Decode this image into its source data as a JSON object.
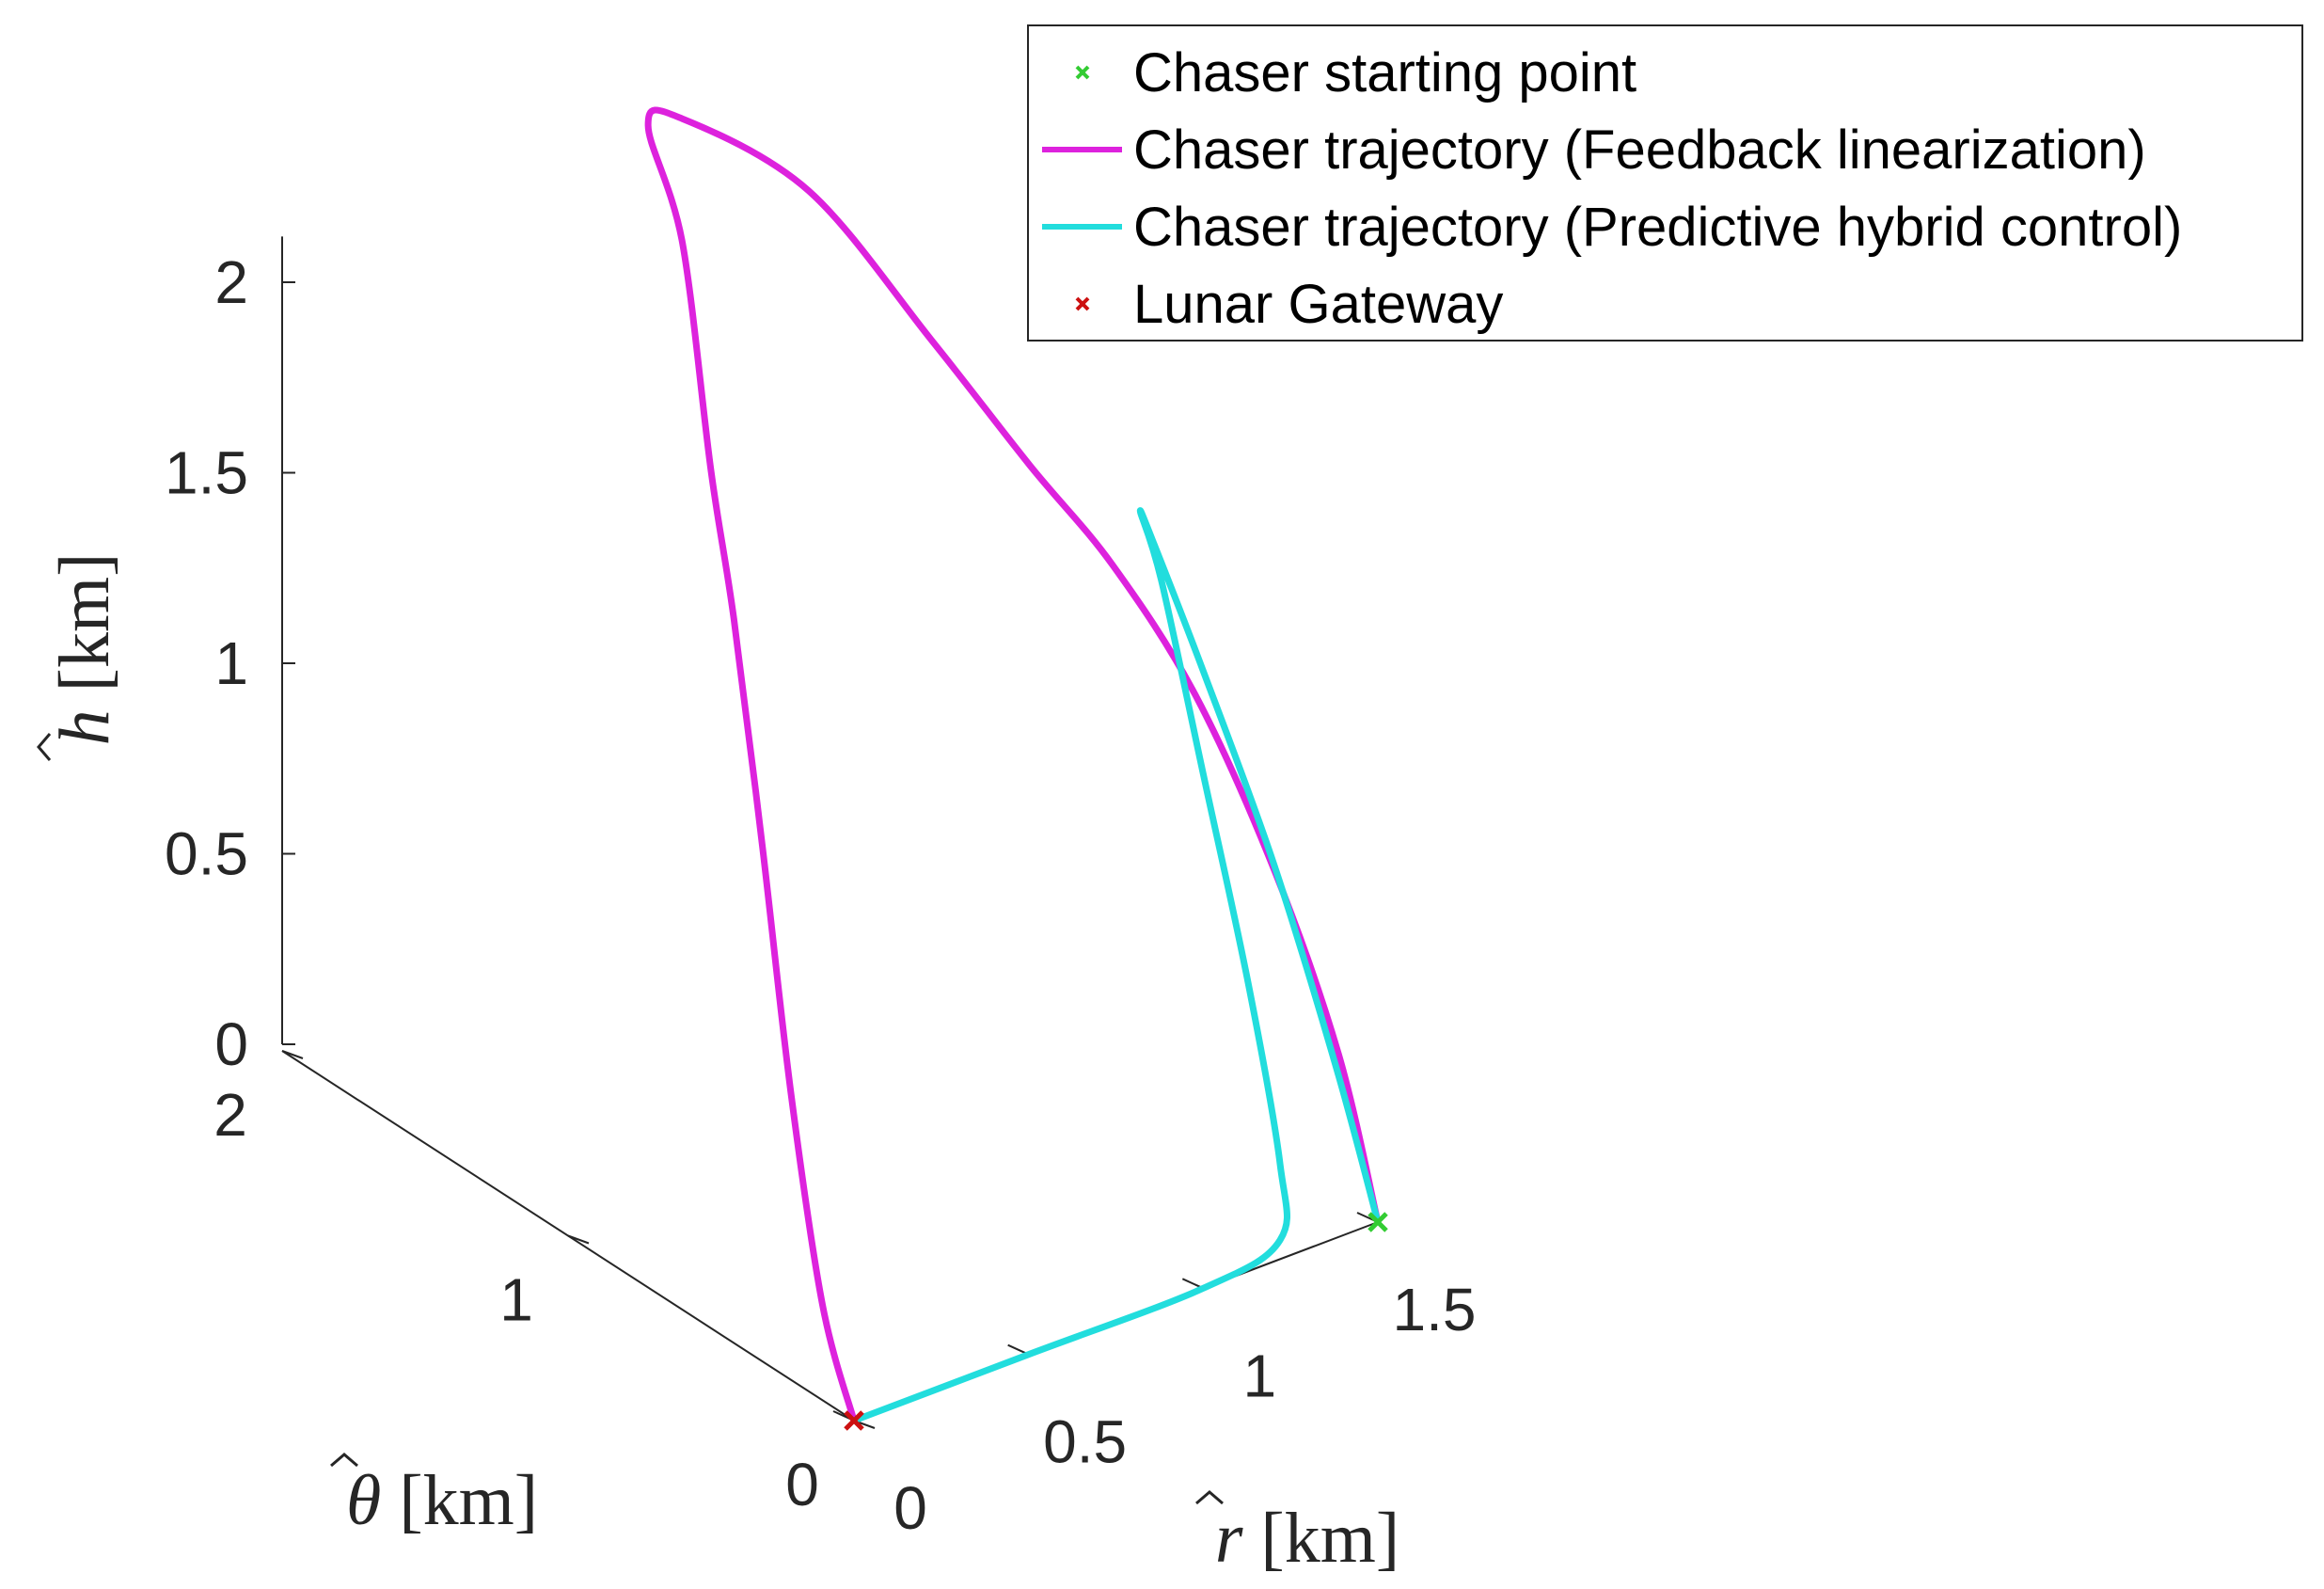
{
  "chart_data": {
    "type": "line",
    "projection": "3d",
    "title": "",
    "axes": {
      "r": {
        "symbol": "r",
        "label_rest": " [km]",
        "ticks": [
          "0",
          "0.5",
          "1",
          "1.5"
        ],
        "range": [
          0,
          1.5
        ]
      },
      "theta": {
        "symbol": "θ",
        "label_rest": " [km]",
        "ticks": [
          "0",
          "1",
          "2"
        ],
        "range": [
          0,
          2
        ]
      },
      "h": {
        "symbol": "h",
        "label_rest": " [km]",
        "ticks": [
          "0",
          "0.5",
          "1",
          "1.5",
          "2"
        ],
        "range": [
          0,
          2
        ]
      }
    },
    "grid": false,
    "legend_position": "top-right",
    "series": [
      {
        "name": "Chaser starting point",
        "kind": "marker",
        "marker": "x",
        "color": "#33cc33",
        "points": [
          {
            "r": 1.5,
            "theta": 0,
            "h": 0
          }
        ]
      },
      {
        "name": "Chaser trajectory (Feedback linearization)",
        "kind": "line",
        "color": "#dd22dd",
        "points": [
          {
            "r": 0.0,
            "theta": 0.0,
            "h": 0.0
          },
          {
            "r": 0.0,
            "theta": 0.11,
            "h": 0.25
          },
          {
            "r": 0.0,
            "theta": 0.22,
            "h": 0.75
          },
          {
            "r": 0.0,
            "theta": 0.32,
            "h": 1.35
          },
          {
            "r": 0.0,
            "theta": 0.42,
            "h": 1.9
          },
          {
            "r": 0.0,
            "theta": 0.5,
            "h": 2.25
          },
          {
            "r": 0.0,
            "theta": 0.6,
            "h": 2.8
          },
          {
            "r": 0.0,
            "theta": 0.72,
            "h": 3.05
          },
          {
            "r": 0.08,
            "theta": 0.7,
            "h": 3.05
          },
          {
            "r": 0.32,
            "theta": 0.55,
            "h": 2.85
          },
          {
            "r": 0.55,
            "theta": 0.4,
            "h": 2.45
          },
          {
            "r": 0.75,
            "theta": 0.3,
            "h": 2.1
          },
          {
            "r": 0.92,
            "theta": 0.22,
            "h": 1.82
          },
          {
            "r": 1.1,
            "theta": 0.15,
            "h": 1.45
          },
          {
            "r": 1.28,
            "theta": 0.09,
            "h": 0.95
          },
          {
            "r": 1.42,
            "theta": 0.04,
            "h": 0.45
          },
          {
            "r": 1.5,
            "theta": 0.0,
            "h": 0.0
          }
        ]
      },
      {
        "name": "Chaser trajectory (Predictive hybrid control)",
        "kind": "line",
        "color": "#22dddd",
        "points": [
          {
            "r": 0.0,
            "theta": 0.0,
            "h": 0.0
          },
          {
            "r": 0.5,
            "theta": 0.0,
            "h": 0.0
          },
          {
            "r": 1.0,
            "theta": 0.0,
            "h": 0.0
          },
          {
            "r": 1.22,
            "theta": 0.0,
            "h": 0.05
          },
          {
            "r": 1.22,
            "theta": 0.0,
            "h": 0.25
          },
          {
            "r": 1.13,
            "theta": 0.0,
            "h": 0.75
          },
          {
            "r": 1.0,
            "theta": 0.0,
            "h": 1.35
          },
          {
            "r": 0.88,
            "theta": 0.0,
            "h": 1.9
          },
          {
            "r": 0.82,
            "theta": 0.0,
            "h": 2.1
          },
          {
            "r": 0.86,
            "theta": 0.0,
            "h": 2.0
          },
          {
            "r": 1.0,
            "theta": 0.0,
            "h": 1.62
          },
          {
            "r": 1.2,
            "theta": 0.0,
            "h": 1.05
          },
          {
            "r": 1.38,
            "theta": 0.0,
            "h": 0.45
          },
          {
            "r": 1.5,
            "theta": 0.0,
            "h": 0.0
          }
        ]
      },
      {
        "name": "Lunar Gateway",
        "kind": "marker",
        "marker": "x",
        "color": "#cc1111",
        "points": [
          {
            "r": 0,
            "theta": 0,
            "h": 0
          }
        ]
      }
    ]
  }
}
